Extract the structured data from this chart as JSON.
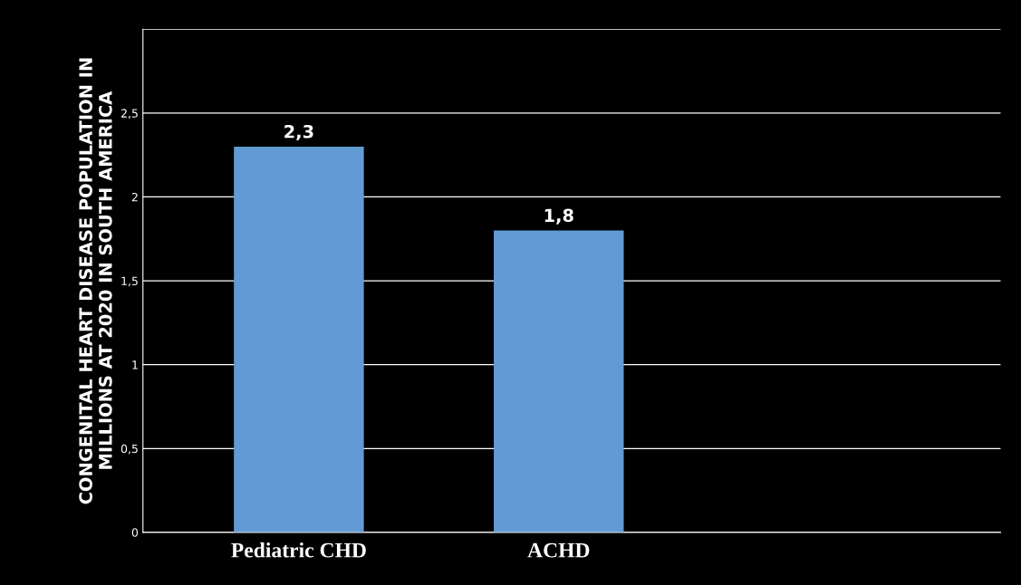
{
  "chart_data": {
    "type": "bar",
    "ylabel": "CONGENITAL HEART DISEASE POPULATION IN\nMILLIONS AT 2020 IN SOUTH AMERICA",
    "categories": [
      "Pediatric CHD",
      "ACHD"
    ],
    "values": [
      2.3,
      1.8
    ],
    "value_labels": [
      "2,3",
      "1,8"
    ],
    "color": "#629bd4",
    "ylim": [
      0,
      3
    ],
    "yticks": [
      0,
      {
        "value": 0.5,
        "label": "0,5"
      },
      1,
      {
        "value": 1.5,
        "label": "1,5"
      },
      2,
      {
        "value": 2.5,
        "label": "2,5"
      },
      {
        "value": 3,
        "label": null
      }
    ],
    "grid": "y"
  }
}
